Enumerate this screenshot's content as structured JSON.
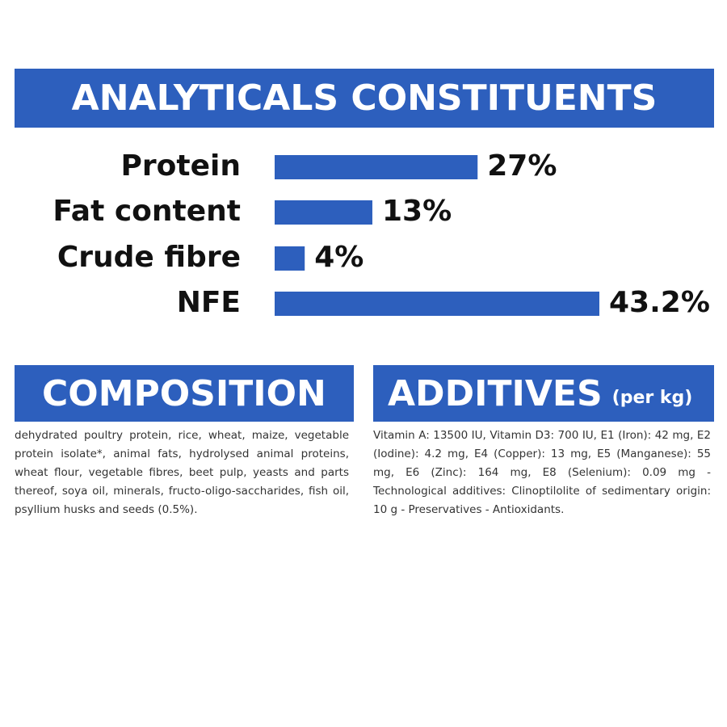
{
  "chart_data": {
    "type": "bar",
    "orientation": "horizontal",
    "title": "ANALYTICALS CONSTITUENTS",
    "categories": [
      "Protein",
      "Fat content",
      "Crude fibre",
      "NFE"
    ],
    "values": [
      27,
      13,
      4,
      43.2
    ],
    "value_labels": [
      "27%",
      "13%",
      "4%",
      "43.2%"
    ],
    "color": "#2d5fbd"
  },
  "composition": {
    "title": "COMPOSITION",
    "text": "dehydrated poultry protein, rice, wheat, maize, vegetable protein isolate*, animal fats, hydrolysed animal proteins, wheat flour, vegetable fibres, beet pulp, yeasts and parts thereof, soya oil, minerals, fructo-oligo-saccharides, fish oil, psyllium husks and seeds (0.5%)."
  },
  "additives": {
    "title": "ADDITIVES",
    "subtitle": "(per kg)",
    "text": "Vitamin A: 13500 IU, Vitamin D3: 700 IU, E1 (Iron): 42 mg, E2 (Iodine): 4.2 mg, E4 (Copper): 13 mg, E5 (Manganese): 55 mg, E6 (Zinc): 164 mg, E8 (Selenium): 0.09 mg -Technological additives: Clinoptilolite of sedimentary origin: 10 g - Preservatives - Antioxidants."
  }
}
